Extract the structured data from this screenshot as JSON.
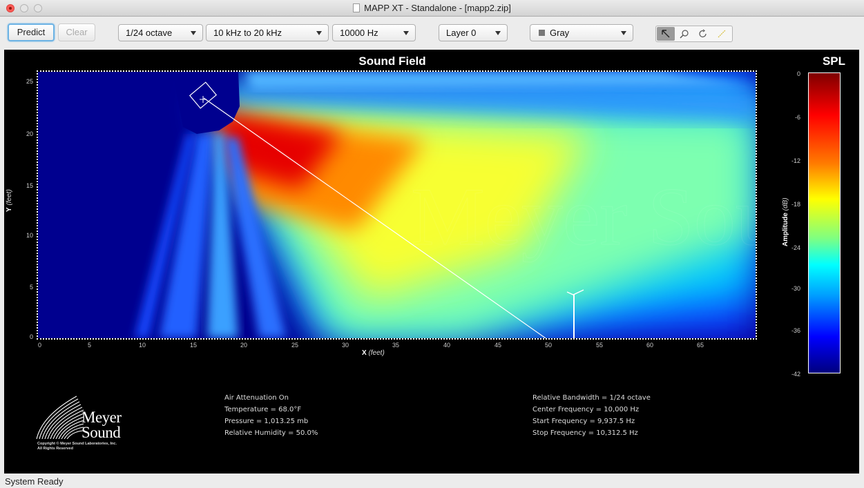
{
  "window": {
    "title": "MAPP XT - Standalone - [mapp2.zip]"
  },
  "toolbar": {
    "predict_label": "Predict",
    "clear_label": "Clear",
    "bandwidth": "1/24 octave",
    "range": "10 kHz to 20 kHz",
    "frequency": "10000 Hz",
    "layer": "Layer 0",
    "color_scheme": "Gray",
    "tools": [
      "select-arrow-icon",
      "zoom-icon",
      "rotate-icon",
      "measure-icon"
    ]
  },
  "plot": {
    "title": "Sound Field",
    "x_axis_label": "X",
    "x_axis_unit": "(feet)",
    "y_axis_label": "Y",
    "y_axis_unit": "(feet)",
    "x_ticks": [
      "0",
      "5",
      "10",
      "15",
      "20",
      "25",
      "30",
      "35",
      "40",
      "45",
      "50",
      "55",
      "60",
      "65"
    ],
    "y_ticks": [
      "25",
      "20",
      "15",
      "10",
      "5",
      "0"
    ],
    "x_range": [
      0,
      70
    ],
    "y_range": [
      0,
      26
    ],
    "watermark": "Meyer Sound"
  },
  "colorbar": {
    "title": "SPL",
    "label": "Amplitude",
    "unit": "(dB)",
    "ticks": [
      "0",
      "-6",
      "-12",
      "-18",
      "-24",
      "-30",
      "-36",
      "-42"
    ],
    "range": [
      -42,
      0
    ]
  },
  "info_left": {
    "line1": "Air Attenuation On",
    "line2": "Temperature = 68.0°F",
    "line3": "Pressure = 1,013.25  mb",
    "line4": "Relative Humidity = 50.0%"
  },
  "info_right": {
    "line1": "Relative Bandwidth = 1/24 octave",
    "line2": "Center Frequency = 10,000 Hz",
    "line3": "Start Frequency = 9,937.5 Hz",
    "line4": "Stop Frequency = 10,312.5 Hz"
  },
  "logo": {
    "name_line1": "Meyer",
    "name_line2": "Sound",
    "copyright_line1": "Copyright © Meyer Sound Laboratories, Inc.",
    "copyright_line2": "All Rights Reserved"
  },
  "status": {
    "text": "System Ready"
  },
  "colors": {
    "field_background": "#00008f",
    "frame": "#ffffff",
    "predict_focus": "#6db3e4"
  }
}
